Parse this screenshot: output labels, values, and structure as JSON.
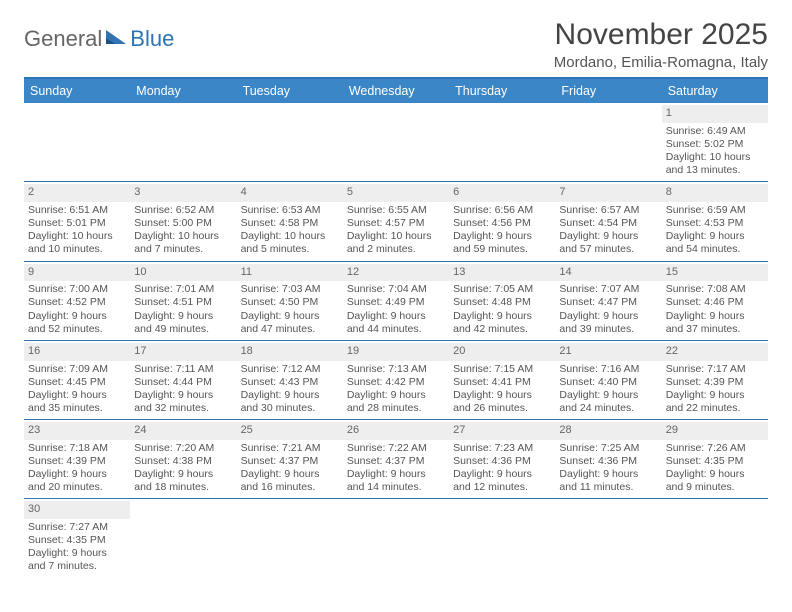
{
  "logo": {
    "part1": "General",
    "part2": "Blue"
  },
  "title": "November 2025",
  "subtitle": "Mordano, Emilia-Romagna, Italy",
  "header_bg": "#3b86c7",
  "accent": "#2e74b5",
  "weekdays": [
    "Sunday",
    "Monday",
    "Tuesday",
    "Wednesday",
    "Thursday",
    "Friday",
    "Saturday"
  ],
  "weeks": [
    [
      null,
      null,
      null,
      null,
      null,
      null,
      {
        "n": "1",
        "sunrise": "Sunrise: 6:49 AM",
        "sunset": "Sunset: 5:02 PM",
        "day1": "Daylight: 10 hours",
        "day2": "and 13 minutes."
      }
    ],
    [
      {
        "n": "2",
        "sunrise": "Sunrise: 6:51 AM",
        "sunset": "Sunset: 5:01 PM",
        "day1": "Daylight: 10 hours",
        "day2": "and 10 minutes."
      },
      {
        "n": "3",
        "sunrise": "Sunrise: 6:52 AM",
        "sunset": "Sunset: 5:00 PM",
        "day1": "Daylight: 10 hours",
        "day2": "and 7 minutes."
      },
      {
        "n": "4",
        "sunrise": "Sunrise: 6:53 AM",
        "sunset": "Sunset: 4:58 PM",
        "day1": "Daylight: 10 hours",
        "day2": "and 5 minutes."
      },
      {
        "n": "5",
        "sunrise": "Sunrise: 6:55 AM",
        "sunset": "Sunset: 4:57 PM",
        "day1": "Daylight: 10 hours",
        "day2": "and 2 minutes."
      },
      {
        "n": "6",
        "sunrise": "Sunrise: 6:56 AM",
        "sunset": "Sunset: 4:56 PM",
        "day1": "Daylight: 9 hours",
        "day2": "and 59 minutes."
      },
      {
        "n": "7",
        "sunrise": "Sunrise: 6:57 AM",
        "sunset": "Sunset: 4:54 PM",
        "day1": "Daylight: 9 hours",
        "day2": "and 57 minutes."
      },
      {
        "n": "8",
        "sunrise": "Sunrise: 6:59 AM",
        "sunset": "Sunset: 4:53 PM",
        "day1": "Daylight: 9 hours",
        "day2": "and 54 minutes."
      }
    ],
    [
      {
        "n": "9",
        "sunrise": "Sunrise: 7:00 AM",
        "sunset": "Sunset: 4:52 PM",
        "day1": "Daylight: 9 hours",
        "day2": "and 52 minutes."
      },
      {
        "n": "10",
        "sunrise": "Sunrise: 7:01 AM",
        "sunset": "Sunset: 4:51 PM",
        "day1": "Daylight: 9 hours",
        "day2": "and 49 minutes."
      },
      {
        "n": "11",
        "sunrise": "Sunrise: 7:03 AM",
        "sunset": "Sunset: 4:50 PM",
        "day1": "Daylight: 9 hours",
        "day2": "and 47 minutes."
      },
      {
        "n": "12",
        "sunrise": "Sunrise: 7:04 AM",
        "sunset": "Sunset: 4:49 PM",
        "day1": "Daylight: 9 hours",
        "day2": "and 44 minutes."
      },
      {
        "n": "13",
        "sunrise": "Sunrise: 7:05 AM",
        "sunset": "Sunset: 4:48 PM",
        "day1": "Daylight: 9 hours",
        "day2": "and 42 minutes."
      },
      {
        "n": "14",
        "sunrise": "Sunrise: 7:07 AM",
        "sunset": "Sunset: 4:47 PM",
        "day1": "Daylight: 9 hours",
        "day2": "and 39 minutes."
      },
      {
        "n": "15",
        "sunrise": "Sunrise: 7:08 AM",
        "sunset": "Sunset: 4:46 PM",
        "day1": "Daylight: 9 hours",
        "day2": "and 37 minutes."
      }
    ],
    [
      {
        "n": "16",
        "sunrise": "Sunrise: 7:09 AM",
        "sunset": "Sunset: 4:45 PM",
        "day1": "Daylight: 9 hours",
        "day2": "and 35 minutes."
      },
      {
        "n": "17",
        "sunrise": "Sunrise: 7:11 AM",
        "sunset": "Sunset: 4:44 PM",
        "day1": "Daylight: 9 hours",
        "day2": "and 32 minutes."
      },
      {
        "n": "18",
        "sunrise": "Sunrise: 7:12 AM",
        "sunset": "Sunset: 4:43 PM",
        "day1": "Daylight: 9 hours",
        "day2": "and 30 minutes."
      },
      {
        "n": "19",
        "sunrise": "Sunrise: 7:13 AM",
        "sunset": "Sunset: 4:42 PM",
        "day1": "Daylight: 9 hours",
        "day2": "and 28 minutes."
      },
      {
        "n": "20",
        "sunrise": "Sunrise: 7:15 AM",
        "sunset": "Sunset: 4:41 PM",
        "day1": "Daylight: 9 hours",
        "day2": "and 26 minutes."
      },
      {
        "n": "21",
        "sunrise": "Sunrise: 7:16 AM",
        "sunset": "Sunset: 4:40 PM",
        "day1": "Daylight: 9 hours",
        "day2": "and 24 minutes."
      },
      {
        "n": "22",
        "sunrise": "Sunrise: 7:17 AM",
        "sunset": "Sunset: 4:39 PM",
        "day1": "Daylight: 9 hours",
        "day2": "and 22 minutes."
      }
    ],
    [
      {
        "n": "23",
        "sunrise": "Sunrise: 7:18 AM",
        "sunset": "Sunset: 4:39 PM",
        "day1": "Daylight: 9 hours",
        "day2": "and 20 minutes."
      },
      {
        "n": "24",
        "sunrise": "Sunrise: 7:20 AM",
        "sunset": "Sunset: 4:38 PM",
        "day1": "Daylight: 9 hours",
        "day2": "and 18 minutes."
      },
      {
        "n": "25",
        "sunrise": "Sunrise: 7:21 AM",
        "sunset": "Sunset: 4:37 PM",
        "day1": "Daylight: 9 hours",
        "day2": "and 16 minutes."
      },
      {
        "n": "26",
        "sunrise": "Sunrise: 7:22 AM",
        "sunset": "Sunset: 4:37 PM",
        "day1": "Daylight: 9 hours",
        "day2": "and 14 minutes."
      },
      {
        "n": "27",
        "sunrise": "Sunrise: 7:23 AM",
        "sunset": "Sunset: 4:36 PM",
        "day1": "Daylight: 9 hours",
        "day2": "and 12 minutes."
      },
      {
        "n": "28",
        "sunrise": "Sunrise: 7:25 AM",
        "sunset": "Sunset: 4:36 PM",
        "day1": "Daylight: 9 hours",
        "day2": "and 11 minutes."
      },
      {
        "n": "29",
        "sunrise": "Sunrise: 7:26 AM",
        "sunset": "Sunset: 4:35 PM",
        "day1": "Daylight: 9 hours",
        "day2": "and 9 minutes."
      }
    ],
    [
      {
        "n": "30",
        "sunrise": "Sunrise: 7:27 AM",
        "sunset": "Sunset: 4:35 PM",
        "day1": "Daylight: 9 hours",
        "day2": "and 7 minutes."
      },
      null,
      null,
      null,
      null,
      null,
      null
    ]
  ]
}
